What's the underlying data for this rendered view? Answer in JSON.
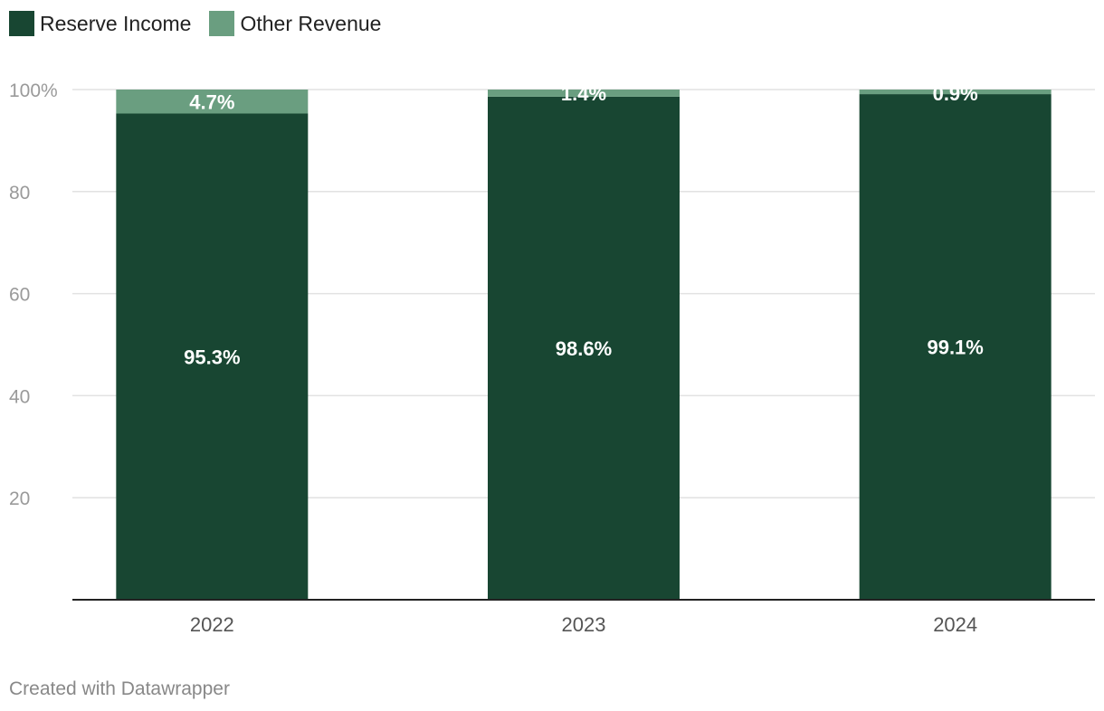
{
  "chart_data": {
    "type": "bar",
    "stacked": true,
    "categories": [
      "2022",
      "2023",
      "2024"
    ],
    "series": [
      {
        "name": "Reserve Income",
        "color": "#184632",
        "values": [
          95.3,
          98.6,
          99.1
        ],
        "labels": [
          "95.3%",
          "98.6%",
          "99.1%"
        ]
      },
      {
        "name": "Other Revenue",
        "color": "#6a9e80",
        "values": [
          4.7,
          1.4,
          0.9
        ],
        "labels": [
          "4.7%",
          "1.4%",
          "0.9%"
        ]
      }
    ],
    "ylim": [
      0,
      100
    ],
    "yticks": [
      20,
      40,
      60,
      80,
      100
    ],
    "ytick_labels": [
      "20",
      "40",
      "60",
      "80",
      "100%"
    ],
    "grid": true,
    "legend": "top-left"
  },
  "legend": {
    "items": [
      {
        "label": "Reserve Income",
        "color": "#184632"
      },
      {
        "label": "Other Revenue",
        "color": "#6a9e80"
      }
    ]
  },
  "footer": {
    "credit": "Created with Datawrapper"
  }
}
